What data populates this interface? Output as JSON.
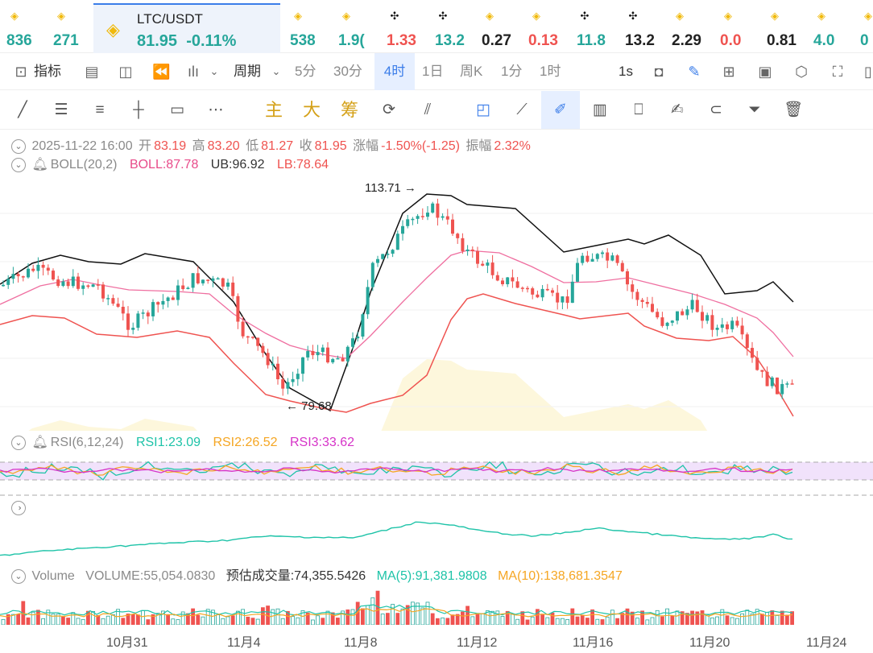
{
  "ticker": [
    {
      "icon": "bnb",
      "value": "836",
      "dir": "up",
      "x": 8
    },
    {
      "icon": "bnb",
      "value": "271",
      "dir": "up",
      "x": 66
    },
    {
      "icon": "bnb",
      "value": "538",
      "dir": "up",
      "x": 360
    },
    {
      "icon": "bnb",
      "value": "1.9(",
      "dir": "up",
      "x": 420
    },
    {
      "icon": "okx",
      "value": "1.33",
      "dir": "down",
      "x": 480
    },
    {
      "icon": "okx",
      "value": "13.2",
      "dir": "up",
      "x": 540
    },
    {
      "icon": "bnb",
      "value": "0.27",
      "dir": "neutral",
      "x": 598
    },
    {
      "icon": "bnb",
      "value": "0.13",
      "dir": "down",
      "x": 656
    },
    {
      "icon": "okx",
      "value": "11.8",
      "dir": "up",
      "x": 716
    },
    {
      "icon": "okx",
      "value": "13.2",
      "dir": "neutral",
      "x": 776
    },
    {
      "icon": "bnb",
      "value": "2.29",
      "dir": "neutral",
      "x": 834
    },
    {
      "icon": "bnb",
      "value": "0.0",
      "dir": "down",
      "x": 894
    },
    {
      "icon": "bnb",
      "value": "0.81",
      "dir": "neutral",
      "x": 952
    },
    {
      "icon": "bnb",
      "value": "4.0",
      "dir": "up",
      "x": 1010
    },
    {
      "icon": "bnb",
      "value": "0",
      "dir": "up",
      "x": 1068
    }
  ],
  "active": {
    "pair": "LTC/USDT",
    "price": "81.95",
    "change": "-0.11%"
  },
  "toolbar": {
    "indicators": "指标",
    "period": "周期",
    "intervals": [
      "5分",
      "30分",
      "4时",
      "1日",
      "周K",
      "1分",
      "1时"
    ],
    "selected_interval": "4时",
    "speed": "1s"
  },
  "drawtools": {
    "main": "主",
    "big": "大",
    "chip": "筹"
  },
  "ohlc": {
    "date": "2025-11-22 16:00",
    "open_label": "开",
    "open": "83.19",
    "high_label": "高",
    "high": "83.20",
    "low_label": "低",
    "low": "81.27",
    "close_label": "收",
    "close": "81.95",
    "chg_label": "涨幅",
    "chg": "-1.50%(-1.25)",
    "amp_label": "振幅",
    "amp": "2.32%"
  },
  "boll": {
    "name": "BOLL(20,2)",
    "boll": "BOLL:87.78",
    "ub": "UB:96.92",
    "lb": "LB:78.64"
  },
  "annotations": {
    "high": "113.71",
    "low": "79.68"
  },
  "rsi": {
    "name": "RSI(6,12,24)",
    "rsi1": "RSI1:23.09",
    "rsi2": "RSI2:26.52",
    "rsi3": "RSI3:33.62"
  },
  "volume": {
    "name": "Volume",
    "volume": "VOLUME:55,054.0830",
    "est": "预估成交量:74,355.5426",
    "ma5": "MA(5):91,381.9808",
    "ma10": "MA(10):138,681.3547"
  },
  "xaxis": [
    "10月31",
    "11月4",
    "11月8",
    "11月12",
    "11月16",
    "11月20",
    "11月24"
  ],
  "colors": {
    "up": "#26a69a",
    "down": "#ef5350",
    "accent": "#3b7de9",
    "boll_fill": "#fdf7dc"
  }
}
